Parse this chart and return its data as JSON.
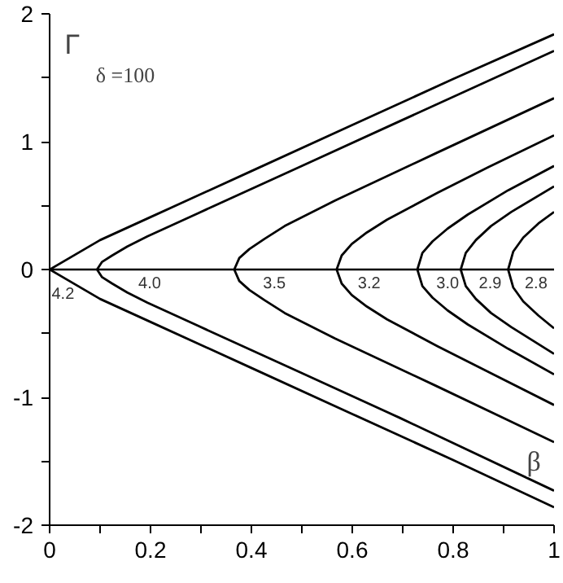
{
  "chart_data": {
    "type": "line",
    "xlabel": "β",
    "ylabel": "Γ",
    "xlim": [
      0,
      1
    ],
    "ylim": [
      -2,
      2
    ],
    "xticks": [
      0,
      {
        "value": 0.1,
        "label": null
      },
      0.2,
      {
        "value": 0.3,
        "label": null
      },
      0.4,
      {
        "value": 0.5,
        "label": null
      },
      0.6,
      {
        "value": 0.7,
        "label": null
      },
      0.8,
      {
        "value": 0.9,
        "label": null
      },
      1
    ],
    "yticks": [
      -2,
      {
        "value": -1.5,
        "label": null
      },
      -1,
      {
        "value": -0.5,
        "label": null
      },
      0,
      {
        "value": 0.5,
        "label": null
      },
      1,
      {
        "value": 1.5,
        "label": null
      },
      2
    ],
    "grid": false,
    "line_style": "solid",
    "marker": "none",
    "ref_lines": [
      {
        "axis": "y",
        "value": 0,
        "color": "#000000"
      }
    ],
    "annotations": [
      "δ =100"
    ],
    "series": [
      {
        "name": "4.2",
        "color": "#000000",
        "x": [
          1,
          0.8,
          0.6,
          0.4,
          0.2,
          0.1,
          0,
          0.1,
          0.2,
          0.4,
          0.6,
          0.8,
          1
        ],
        "values": [
          1.84,
          1.49,
          1.13,
          0.77,
          0.41,
          0.23,
          0,
          -0.23,
          -0.41,
          -0.77,
          -1.13,
          -1.49,
          -1.86
        ]
      },
      {
        "name": "4.0",
        "color": "#000000",
        "x": [
          1,
          0.694,
          0.494,
          0.294,
          0.194,
          0.154,
          0.124,
          0.104,
          0.094,
          0.104,
          0.124,
          0.154,
          0.194,
          0.294,
          0.494,
          0.694,
          1
        ],
        "values": [
          1.71,
          1.16,
          0.8,
          0.44,
          0.26,
          0.18,
          0.11,
          0.06,
          0,
          -0.06,
          -0.11,
          -0.18,
          -0.26,
          -0.44,
          -0.8,
          -1.16,
          -1.73
        ]
      },
      {
        "name": "3.5",
        "color": "#000000",
        "x": [
          1,
          0.766,
          0.566,
          0.466,
          0.426,
          0.396,
          0.376,
          0.366,
          0.376,
          0.396,
          0.426,
          0.466,
          0.566,
          0.766,
          1
        ],
        "values": [
          1.34,
          0.91,
          0.54,
          0.34,
          0.24,
          0.16,
          0.09,
          0,
          -0.09,
          -0.16,
          -0.24,
          -0.34,
          -0.54,
          -0.91,
          -1.35
        ]
      },
      {
        "name": "3.2",
        "color": "#000000",
        "x": [
          1,
          0.869,
          0.769,
          0.669,
          0.629,
          0.599,
          0.579,
          0.569,
          0.579,
          0.599,
          0.629,
          0.669,
          0.769,
          0.869,
          1
        ],
        "values": [
          1.05,
          0.8,
          0.6,
          0.39,
          0.29,
          0.2,
          0.11,
          0,
          -0.11,
          -0.2,
          -0.29,
          -0.39,
          -0.6,
          -0.8,
          -1.06
        ]
      },
      {
        "name": "3.0",
        "color": "#000000",
        "x": [
          1,
          0.909,
          0.829,
          0.789,
          0.759,
          0.739,
          0.729,
          0.739,
          0.759,
          0.789,
          0.829,
          0.909,
          1
        ],
        "values": [
          0.81,
          0.62,
          0.43,
          0.32,
          0.22,
          0.13,
          0,
          -0.13,
          -0.22,
          -0.32,
          -0.43,
          -0.62,
          -0.82
        ]
      },
      {
        "name": "2.9",
        "color": "#000000",
        "x": [
          1,
          0.915,
          0.875,
          0.845,
          0.825,
          0.815,
          0.825,
          0.845,
          0.875,
          0.915,
          1
        ],
        "values": [
          0.65,
          0.45,
          0.34,
          0.23,
          0.13,
          0,
          -0.13,
          -0.23,
          -0.34,
          -0.45,
          -0.66
        ]
      },
      {
        "name": "2.8",
        "color": "#000000",
        "x": [
          1,
          0.969,
          0.939,
          0.919,
          0.909,
          0.919,
          0.939,
          0.969,
          1
        ],
        "values": [
          0.45,
          0.36,
          0.25,
          0.14,
          0,
          -0.14,
          -0.25,
          -0.36,
          -0.46
        ]
      }
    ]
  }
}
